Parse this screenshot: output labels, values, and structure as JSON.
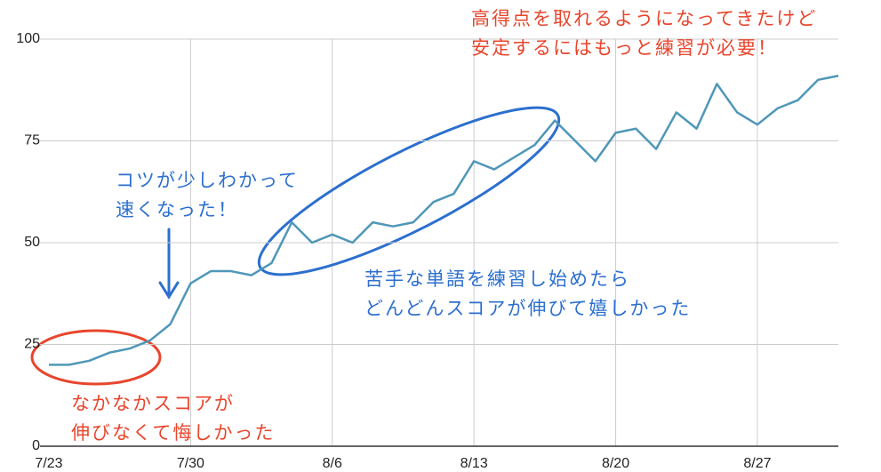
{
  "chart_data": {
    "type": "line",
    "categories": [
      "7/23",
      null,
      null,
      null,
      null,
      null,
      null,
      "7/30",
      null,
      null,
      null,
      null,
      null,
      null,
      "8/6",
      null,
      null,
      null,
      null,
      null,
      null,
      "8/13",
      null,
      null,
      null,
      null,
      null,
      null,
      "8/20",
      null,
      null,
      null,
      null,
      null,
      null,
      "8/27",
      null,
      null,
      null,
      null
    ],
    "series": [
      {
        "color": "#4f97b8",
        "values": [
          20,
          20,
          21,
          23,
          24,
          26,
          30,
          40,
          43,
          43,
          42,
          45,
          55,
          50,
          52,
          50,
          55,
          54,
          55,
          60,
          62,
          70,
          68,
          71,
          74,
          80,
          75,
          70,
          77,
          78,
          73,
          82,
          78,
          89,
          82,
          79,
          83,
          85,
          90,
          91
        ]
      }
    ],
    "ylim": [
      0,
      100
    ],
    "yticks": [
      0,
      25,
      50,
      75,
      100
    ],
    "grid": true,
    "annotations": [
      {
        "lines": [
          "高得点を取れるようになってきたけど",
          "安定するにはもっと練習が必要！"
        ],
        "color": "#e8452c"
      },
      {
        "lines": [
          "コツが少しわかって",
          "速くなった！"
        ],
        "color": "#2c6fcf"
      },
      {
        "lines": [
          "苦手な単語を練習し始めたら",
          "どんどんスコアが伸びて嬉しかった"
        ],
        "color": "#2c6fcf"
      },
      {
        "lines": [
          "なかなかスコアが",
          "伸びなくて悔しかった"
        ],
        "color": "#e8452c"
      }
    ]
  }
}
